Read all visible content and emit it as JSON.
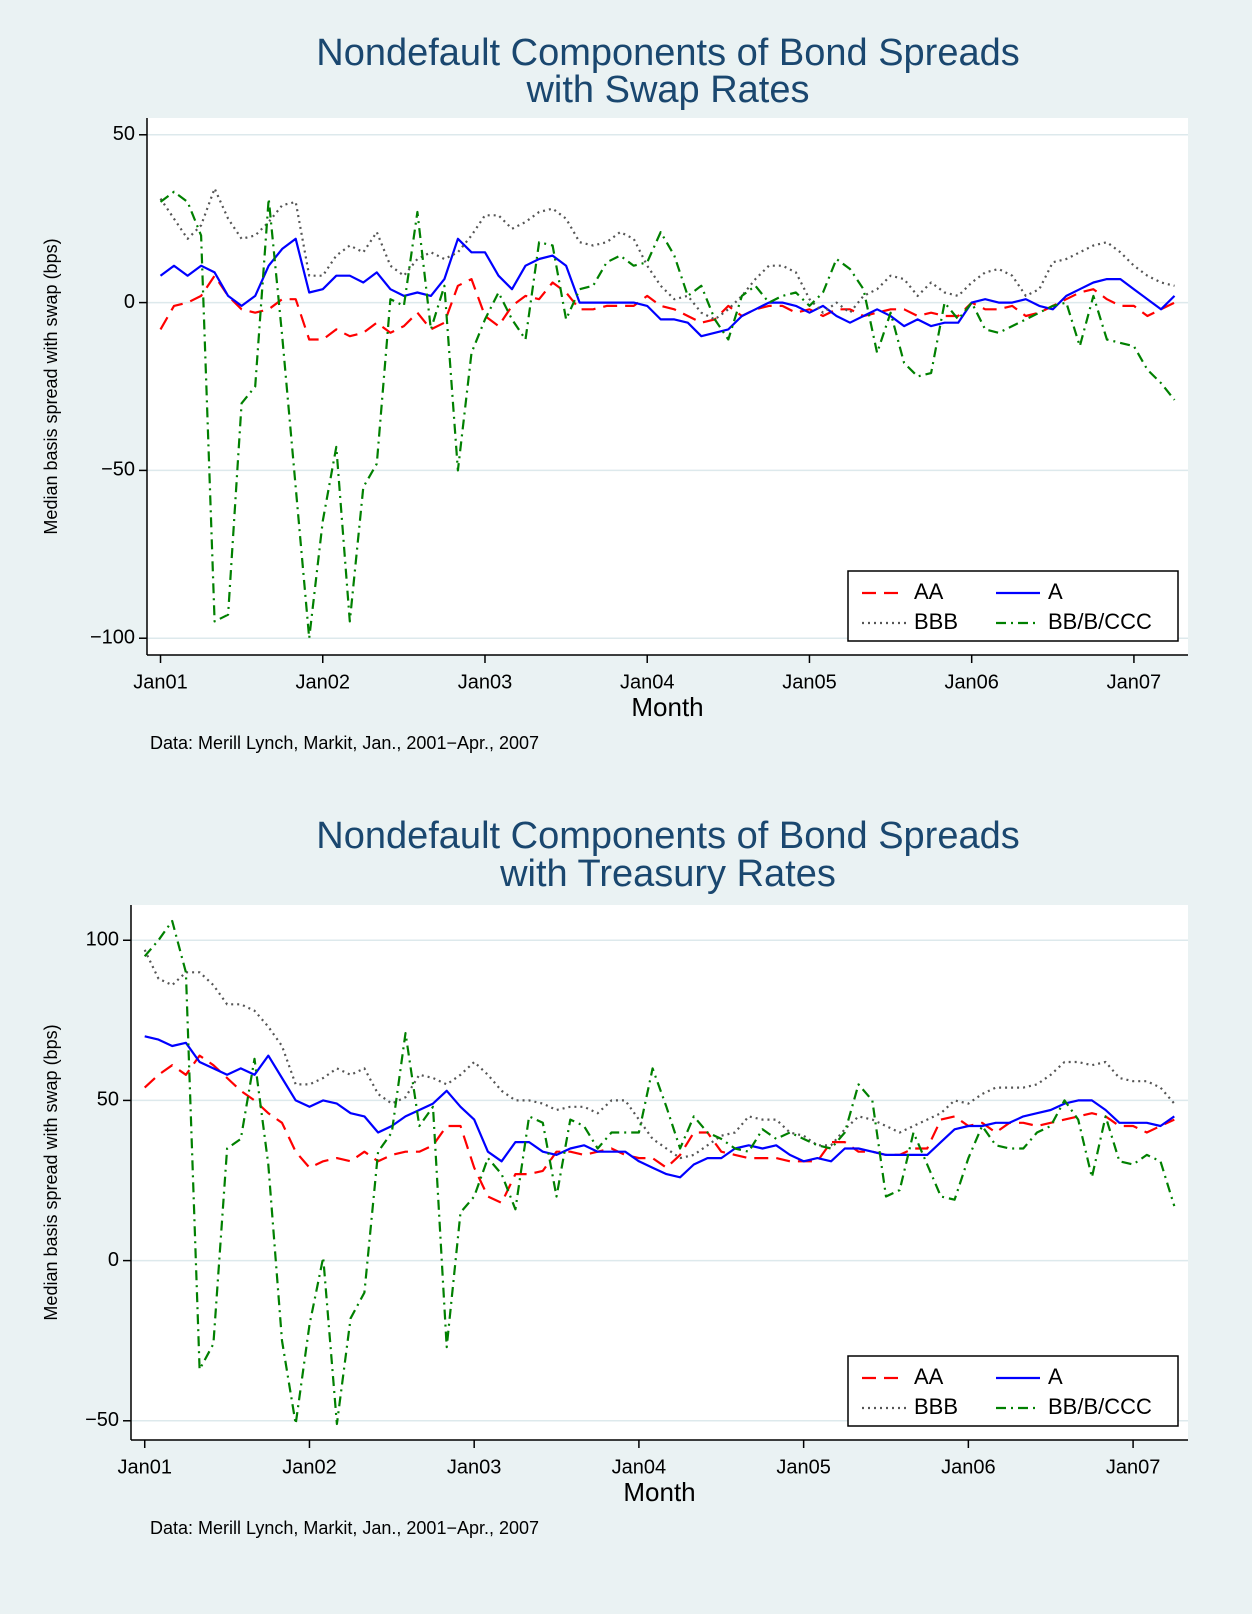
{
  "chart_data": [
    {
      "type": "line",
      "title": [
        "Nondefault Components of Bond Spreads",
        "with Swap Rates"
      ],
      "x_label": "Month",
      "y_label": "Median basis spread with swap (bps)",
      "note": "Data: Merill Lynch, Markit, Jan., 2001−Apr., 2007",
      "x": [
        "2001-01",
        "2001-02",
        "2001-03",
        "2001-04",
        "2001-05",
        "2001-06",
        "2001-07",
        "2001-08",
        "2001-09",
        "2001-10",
        "2001-11",
        "2001-12",
        "2002-01",
        "2002-02",
        "2002-03",
        "2002-04",
        "2002-05",
        "2002-06",
        "2002-07",
        "2002-08",
        "2002-09",
        "2002-10",
        "2002-11",
        "2002-12",
        "2003-01",
        "2003-02",
        "2003-03",
        "2003-04",
        "2003-05",
        "2003-06",
        "2003-07",
        "2003-08",
        "2003-09",
        "2003-10",
        "2003-11",
        "2003-12",
        "2004-01",
        "2004-02",
        "2004-03",
        "2004-04",
        "2004-05",
        "2004-06",
        "2004-07",
        "2004-08",
        "2004-09",
        "2004-10",
        "2004-11",
        "2004-12",
        "2005-01",
        "2005-02",
        "2005-03",
        "2005-04",
        "2005-05",
        "2005-06",
        "2005-07",
        "2005-08",
        "2005-09",
        "2005-10",
        "2005-11",
        "2005-12",
        "2006-01",
        "2006-02",
        "2006-03",
        "2006-04",
        "2006-05",
        "2006-06",
        "2006-07",
        "2006-08",
        "2006-09",
        "2006-10",
        "2006-11",
        "2006-12",
        "2007-01",
        "2007-02",
        "2007-03",
        "2007-04"
      ],
      "xlim": [
        "2000-12",
        "2007-05"
      ],
      "xticks": [
        {
          "value": "2001-01",
          "label": "Jan01"
        },
        {
          "value": "2002-01",
          "label": "Jan02"
        },
        {
          "value": "2003-01",
          "label": "Jan03"
        },
        {
          "value": "2004-01",
          "label": "Jan04"
        },
        {
          "value": "2005-01",
          "label": "Jan05"
        },
        {
          "value": "2006-01",
          "label": "Jan06"
        },
        {
          "value": "2007-01",
          "label": "Jan07"
        }
      ],
      "ylim": [
        -105,
        55
      ],
      "yticks": [
        {
          "value": -100,
          "label": "−100"
        },
        {
          "value": -50,
          "label": "−50"
        },
        0,
        50
      ],
      "grid": true,
      "legend": "bottom right",
      "series": [
        {
          "name": "AA",
          "color": "#ff0000",
          "line_style": "dashed",
          "values": [
            -8,
            -1,
            0,
            2,
            8,
            2,
            -2,
            -3,
            -2,
            1,
            1,
            -11,
            -11,
            -8,
            -10,
            -9,
            -6,
            -9,
            -7,
            -3,
            -8,
            -6,
            5,
            7,
            -4,
            -7,
            -1,
            2,
            1,
            6,
            3,
            -2,
            -2,
            -1,
            -1,
            -1,
            2,
            -1,
            -2,
            -4,
            -6,
            -5,
            -1,
            -4,
            -2,
            -1,
            -1,
            -3,
            -2,
            -4,
            -2,
            -2,
            -4,
            -3,
            -2,
            -2,
            -4,
            -3,
            -4,
            -4,
            0,
            -2,
            -2,
            -1,
            -4,
            -3,
            -1,
            1,
            3,
            4,
            1,
            -1,
            -1,
            -4,
            -2,
            0
          ]
        },
        {
          "name": "A",
          "color": "#0000ff",
          "line_style": "solid",
          "values": [
            8,
            11,
            8,
            11,
            9,
            2,
            -1,
            2,
            11,
            16,
            19,
            3,
            4,
            8,
            8,
            6,
            9,
            4,
            2,
            3,
            2,
            7,
            19,
            15,
            15,
            8,
            4,
            11,
            13,
            14,
            11,
            0,
            0,
            0,
            0,
            0,
            -1,
            -5,
            -5,
            -6,
            -10,
            -9,
            -8,
            -4,
            -2,
            0,
            0,
            -1,
            -3,
            -1,
            -4,
            -6,
            -4,
            -2,
            -4,
            -7,
            -5,
            -7,
            -6,
            -6,
            0,
            1,
            0,
            0,
            1,
            -1,
            -2,
            2,
            4,
            6,
            7,
            7,
            4,
            1,
            -2,
            2
          ]
        },
        {
          "name": "BBB",
          "color": "#555555",
          "line_style": "dotted",
          "values": [
            31,
            25,
            19,
            23,
            34,
            25,
            19,
            20,
            24,
            29,
            30,
            8,
            8,
            14,
            17,
            15,
            21,
            11,
            8,
            13,
            15,
            13,
            15,
            20,
            26,
            26,
            22,
            24,
            27,
            28,
            25,
            18,
            17,
            18,
            21,
            19,
            11,
            5,
            1,
            2,
            -3,
            -5,
            -2,
            2,
            7,
            11,
            11,
            9,
            1,
            -3,
            0,
            -3,
            2,
            4,
            8,
            7,
            2,
            6,
            3,
            2,
            6,
            9,
            10,
            8,
            2,
            4,
            12,
            13,
            15,
            17,
            18,
            15,
            11,
            8,
            6,
            5
          ]
        },
        {
          "name": "BB/B/CCC",
          "color": "#008000",
          "line_style": "dashdot",
          "values": [
            30,
            33,
            30,
            20,
            -95,
            -93,
            -30,
            -25,
            31,
            -10,
            -55,
            -100,
            -65,
            -43,
            -95,
            -55,
            -48,
            1,
            -1,
            27,
            -8,
            5,
            -50,
            -15,
            -5,
            3,
            -5,
            -11,
            18,
            17,
            -5,
            4,
            5,
            12,
            14,
            11,
            12,
            21,
            14,
            2,
            5,
            -5,
            -11,
            2,
            5,
            0,
            2,
            3,
            -1,
            3,
            13,
            10,
            4,
            -15,
            -3,
            -18,
            -22,
            -21,
            0,
            -5,
            0,
            -8,
            -9,
            -7,
            -5,
            -3,
            -1,
            0,
            -13,
            2,
            -11,
            -12,
            -13,
            -20,
            -24,
            -29
          ]
        }
      ]
    },
    {
      "type": "line",
      "title": [
        "Nondefault Components of Bond Spreads",
        "with Treasury Rates"
      ],
      "x_label": "Month",
      "y_label": "Median basis spread with swap (bps)",
      "note": "Data: Merill Lynch, Markit, Jan., 2001−Apr., 2007",
      "x": [
        "2001-01",
        "2001-02",
        "2001-03",
        "2001-04",
        "2001-05",
        "2001-06",
        "2001-07",
        "2001-08",
        "2001-09",
        "2001-10",
        "2001-11",
        "2001-12",
        "2002-01",
        "2002-02",
        "2002-03",
        "2002-04",
        "2002-05",
        "2002-06",
        "2002-07",
        "2002-08",
        "2002-09",
        "2002-10",
        "2002-11",
        "2002-12",
        "2003-01",
        "2003-02",
        "2003-03",
        "2003-04",
        "2003-05",
        "2003-06",
        "2003-07",
        "2003-08",
        "2003-09",
        "2003-10",
        "2003-11",
        "2003-12",
        "2004-01",
        "2004-02",
        "2004-03",
        "2004-04",
        "2004-05",
        "2004-06",
        "2004-07",
        "2004-08",
        "2004-09",
        "2004-10",
        "2004-11",
        "2004-12",
        "2005-01",
        "2005-02",
        "2005-03",
        "2005-04",
        "2005-05",
        "2005-06",
        "2005-07",
        "2005-08",
        "2005-09",
        "2005-10",
        "2005-11",
        "2005-12",
        "2006-01",
        "2006-02",
        "2006-03",
        "2006-04",
        "2006-05",
        "2006-06",
        "2006-07",
        "2006-08",
        "2006-09",
        "2006-10",
        "2006-11",
        "2006-12",
        "2007-01",
        "2007-02",
        "2007-03",
        "2007-04"
      ],
      "xlim": [
        "2000-12",
        "2007-05"
      ],
      "xticks": [
        {
          "value": "2001-01",
          "label": "Jan01"
        },
        {
          "value": "2002-01",
          "label": "Jan02"
        },
        {
          "value": "2003-01",
          "label": "Jan03"
        },
        {
          "value": "2004-01",
          "label": "Jan04"
        },
        {
          "value": "2005-01",
          "label": "Jan05"
        },
        {
          "value": "2006-01",
          "label": "Jan06"
        },
        {
          "value": "2007-01",
          "label": "Jan07"
        }
      ],
      "ylim": [
        -56,
        111
      ],
      "yticks": [
        {
          "value": -50,
          "label": "−50"
        },
        0,
        50,
        100
      ],
      "grid": true,
      "legend": "bottom right",
      "series": [
        {
          "name": "AA",
          "color": "#ff0000",
          "line_style": "dashed",
          "values": [
            54,
            58,
            61,
            58,
            64,
            61,
            57,
            53,
            50,
            46,
            43,
            34,
            29,
            31,
            32,
            31,
            34,
            31,
            33,
            34,
            34,
            36,
            42,
            42,
            29,
            20,
            18,
            27,
            27,
            28,
            34,
            34,
            33,
            34,
            35,
            33,
            32,
            32,
            29,
            33,
            40,
            40,
            34,
            33,
            32,
            32,
            32,
            31,
            31,
            31,
            37,
            37,
            34,
            34,
            33,
            33,
            35,
            35,
            44,
            45,
            42,
            43,
            40,
            43,
            43,
            42,
            43,
            44,
            45,
            46,
            45,
            42,
            42,
            40,
            42,
            44
          ]
        },
        {
          "name": "A",
          "color": "#0000ff",
          "line_style": "solid",
          "values": [
            70,
            69,
            67,
            68,
            62,
            60,
            58,
            60,
            58,
            64,
            57,
            50,
            48,
            50,
            49,
            46,
            45,
            40,
            42,
            45,
            47,
            49,
            53,
            48,
            44,
            34,
            31,
            37,
            37,
            34,
            33,
            35,
            36,
            34,
            34,
            34,
            31,
            29,
            27,
            26,
            30,
            32,
            32,
            35,
            36,
            35,
            36,
            33,
            31,
            32,
            31,
            35,
            35,
            34,
            33,
            33,
            33,
            33,
            37,
            41,
            42,
            42,
            43,
            43,
            45,
            46,
            47,
            49,
            50,
            50,
            47,
            43,
            43,
            43,
            42,
            45
          ]
        },
        {
          "name": "BBB",
          "color": "#555555",
          "line_style": "dotted",
          "values": [
            97,
            88,
            86,
            90,
            90,
            86,
            80,
            80,
            78,
            73,
            67,
            55,
            55,
            57,
            60,
            58,
            60,
            52,
            49,
            51,
            58,
            57,
            55,
            58,
            62,
            58,
            53,
            50,
            50,
            49,
            47,
            48,
            48,
            46,
            50,
            50,
            44,
            38,
            35,
            32,
            33,
            36,
            39,
            40,
            45,
            44,
            44,
            40,
            39,
            36,
            36,
            41,
            45,
            44,
            42,
            40,
            42,
            44,
            46,
            50,
            49,
            52,
            54,
            54,
            54,
            55,
            58,
            62,
            62,
            61,
            62,
            57,
            56,
            56,
            54,
            49
          ]
        },
        {
          "name": "BB/B/CCC",
          "color": "#008000",
          "line_style": "dashdot",
          "values": [
            95,
            100,
            106,
            90,
            -34,
            -26,
            35,
            38,
            63,
            30,
            -25,
            -51,
            -20,
            1,
            -51,
            -18,
            -10,
            34,
            40,
            71,
            42,
            48,
            -27,
            15,
            20,
            32,
            27,
            16,
            45,
            43,
            20,
            44,
            42,
            35,
            40,
            40,
            40,
            60,
            48,
            35,
            45,
            40,
            38,
            35,
            34,
            41,
            38,
            40,
            38,
            36,
            35,
            40,
            55,
            50,
            20,
            22,
            40,
            30,
            20,
            19,
            32,
            42,
            36,
            35,
            35,
            40,
            42,
            50,
            44,
            26,
            45,
            31,
            30,
            33,
            31,
            17
          ]
        }
      ]
    }
  ]
}
